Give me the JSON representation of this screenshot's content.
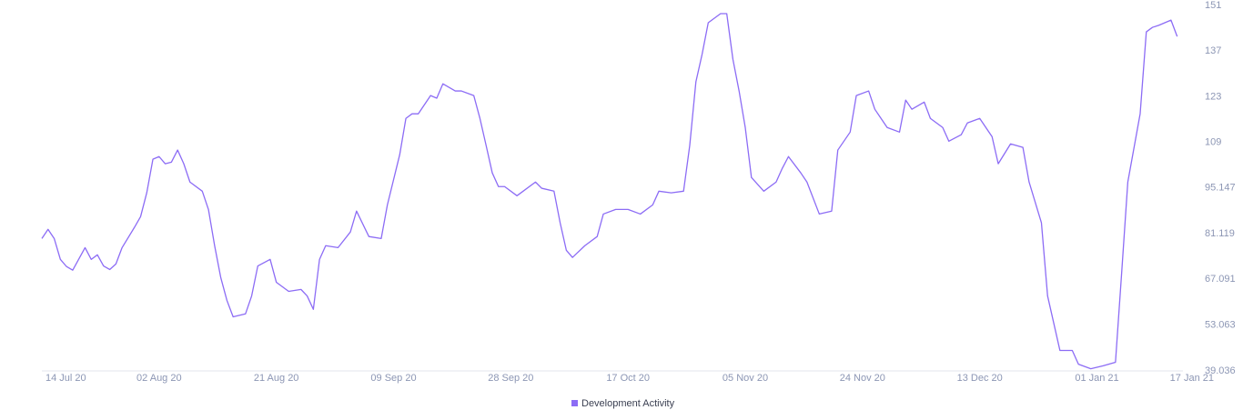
{
  "chart_data": {
    "type": "line",
    "x": [
      "2020-07-14",
      "2020-07-15",
      "2020-07-16",
      "2020-07-17",
      "2020-07-18",
      "2020-07-19",
      "2020-07-21",
      "2020-07-22",
      "2020-07-23",
      "2020-07-24",
      "2020-07-25",
      "2020-07-26",
      "2020-07-27",
      "2020-07-29",
      "2020-07-30",
      "2020-07-31",
      "2020-08-01",
      "2020-08-02",
      "2020-08-03",
      "2020-08-04",
      "2020-08-05",
      "2020-08-06",
      "2020-08-07",
      "2020-08-09",
      "2020-08-10",
      "2020-08-11",
      "2020-08-12",
      "2020-08-13",
      "2020-08-14",
      "2020-08-16",
      "2020-08-17",
      "2020-08-18",
      "2020-08-20",
      "2020-08-21",
      "2020-08-23",
      "2020-08-25",
      "2020-08-26",
      "2020-08-27",
      "2020-08-28",
      "2020-08-29",
      "2020-08-31",
      "2020-09-02",
      "2020-09-03",
      "2020-09-05",
      "2020-09-07",
      "2020-09-08",
      "2020-09-10",
      "2020-09-11",
      "2020-09-12",
      "2020-09-13",
      "2020-09-15",
      "2020-09-16",
      "2020-09-17",
      "2020-09-19",
      "2020-09-20",
      "2020-09-22",
      "2020-09-23",
      "2020-09-24",
      "2020-09-25",
      "2020-09-26",
      "2020-09-27",
      "2020-09-29",
      "2020-09-30",
      "2020-10-02",
      "2020-10-03",
      "2020-10-05",
      "2020-10-06",
      "2020-10-07",
      "2020-10-08",
      "2020-10-10",
      "2020-10-12",
      "2020-10-13",
      "2020-10-15",
      "2020-10-17",
      "2020-10-19",
      "2020-10-21",
      "2020-10-22",
      "2020-10-24",
      "2020-10-26",
      "2020-10-27",
      "2020-10-28",
      "2020-10-29",
      "2020-10-30",
      "2020-11-01",
      "2020-11-02",
      "2020-11-03",
      "2020-11-04",
      "2020-11-05",
      "2020-11-06",
      "2020-11-08",
      "2020-11-10",
      "2020-11-11",
      "2020-11-12",
      "2020-11-14",
      "2020-11-15",
      "2020-11-17",
      "2020-11-19",
      "2020-11-20",
      "2020-11-22",
      "2020-11-23",
      "2020-11-25",
      "2020-11-26",
      "2020-11-28",
      "2020-11-30",
      "2020-12-01",
      "2020-12-02",
      "2020-12-04",
      "2020-12-05",
      "2020-12-07",
      "2020-12-08",
      "2020-12-10",
      "2020-12-11",
      "2020-12-13",
      "2020-12-15",
      "2020-12-16",
      "2020-12-18",
      "2020-12-20",
      "2020-12-21",
      "2020-12-23",
      "2020-12-24",
      "2020-12-26",
      "2020-12-28",
      "2020-12-29",
      "2020-12-31",
      "2021-01-02",
      "2021-01-04",
      "2021-01-05",
      "2021-01-06",
      "2021-01-08",
      "2021-01-09",
      "2021-01-10",
      "2021-01-11",
      "2021-01-13",
      "2021-01-14"
    ],
    "series": [
      {
        "name": "Development Activity",
        "color": "#8c6cf5",
        "values": [
          79.6,
          82.4,
          79.6,
          73.2,
          71,
          69.9,
          76.8,
          73.2,
          74.6,
          71.2,
          70.1,
          71.8,
          76.8,
          83,
          86.3,
          93.6,
          103.9,
          104.7,
          102.5,
          103,
          106.7,
          102.5,
          96.9,
          94.1,
          88.5,
          77.4,
          67.6,
          60.6,
          55.6,
          56.5,
          62,
          71.2,
          73.2,
          66.2,
          63.4,
          64,
          62,
          57.9,
          73.2,
          77.4,
          76.8,
          81.6,
          88,
          80.2,
          79.6,
          89.9,
          105.3,
          116.4,
          117.8,
          117.8,
          123.4,
          122.6,
          127,
          124.8,
          124.8,
          123.4,
          116.4,
          108.1,
          99.7,
          95.5,
          95.5,
          92.7,
          94.1,
          96.9,
          95,
          94.1,
          84.4,
          76,
          73.8,
          77.4,
          80.2,
          87.1,
          88.5,
          88.5,
          87.1,
          89.9,
          94.1,
          93.6,
          94.1,
          108.1,
          127.6,
          136,
          145.7,
          148.5,
          148.5,
          134.5,
          124.8,
          113.6,
          98.3,
          94.1,
          96.9,
          101.1,
          104.7,
          99.7,
          96.9,
          87.1,
          88,
          106.7,
          112.2,
          123.4,
          124.8,
          119.2,
          113.6,
          112.2,
          122,
          119.2,
          121.4,
          116.4,
          113.6,
          109.4,
          111.4,
          115,
          116.4,
          110.8,
          102.5,
          108.6,
          107.5,
          96.9,
          84.4,
          62,
          45.3,
          45.3,
          41.1,
          39.7,
          40.6,
          41.7,
          69,
          96.9,
          117.8,
          142.9,
          144.3,
          144.9,
          146.5,
          141.5
        ]
      }
    ],
    "xlim": [
      "2020-07-14",
      "2021-01-17"
    ],
    "xticks": [
      {
        "value": "2020-07-14",
        "label": "14 Jul 20"
      },
      {
        "value": "2020-08-02",
        "label": "02 Aug 20"
      },
      {
        "value": "2020-08-21",
        "label": "21 Aug 20"
      },
      {
        "value": "2020-09-09",
        "label": "09 Sep 20"
      },
      {
        "value": "2020-09-28",
        "label": "28 Sep 20"
      },
      {
        "value": "2020-10-17",
        "label": "17 Oct 20"
      },
      {
        "value": "2020-11-05",
        "label": "05 Nov 20"
      },
      {
        "value": "2020-11-24",
        "label": "24 Nov 20"
      },
      {
        "value": "2020-12-13",
        "label": "13 Dec 20"
      },
      {
        "value": "2021-01-01",
        "label": "01 Jan 21"
      },
      {
        "value": "2021-01-17",
        "label": "17 Jan 21"
      }
    ],
    "ylim": [
      39.036,
      151
    ],
    "yticks": [
      39.036,
      53.063,
      67.091,
      81.119,
      95.147,
      109,
      123,
      137,
      151
    ],
    "grid": false,
    "legend": "bottom"
  }
}
